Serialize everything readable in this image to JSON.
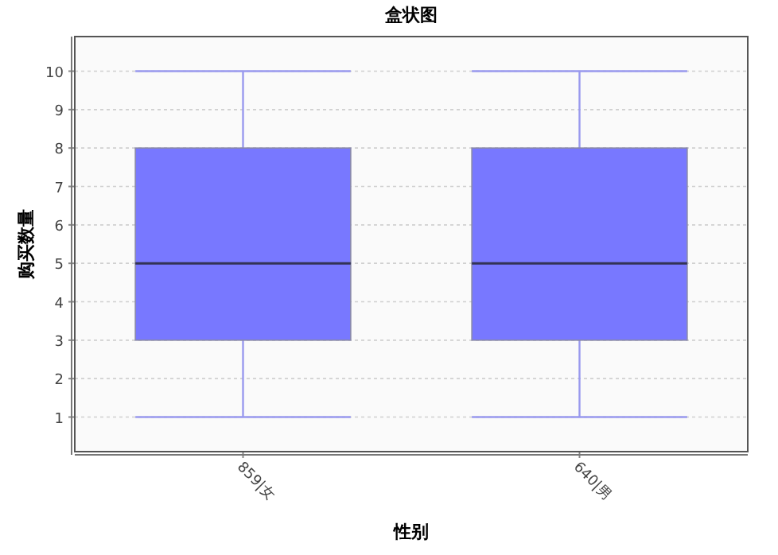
{
  "chart_data": {
    "type": "box",
    "title": "盒状图",
    "xlabel": "性别",
    "ylabel": "购买数量",
    "categories": [
      "859|女",
      "640|男"
    ],
    "boxes": [
      {
        "low": 1,
        "q1": 3,
        "median": 5,
        "q3": 8,
        "high": 10
      },
      {
        "low": 1,
        "q1": 3,
        "median": 5,
        "q3": 8,
        "high": 10
      }
    ],
    "color": "#7878ff",
    "ylim": [
      0.1,
      10.9
    ],
    "yticks": [
      1,
      2,
      3,
      4,
      5,
      6,
      7,
      8,
      9,
      10
    ],
    "grid": "y",
    "legend": false
  }
}
